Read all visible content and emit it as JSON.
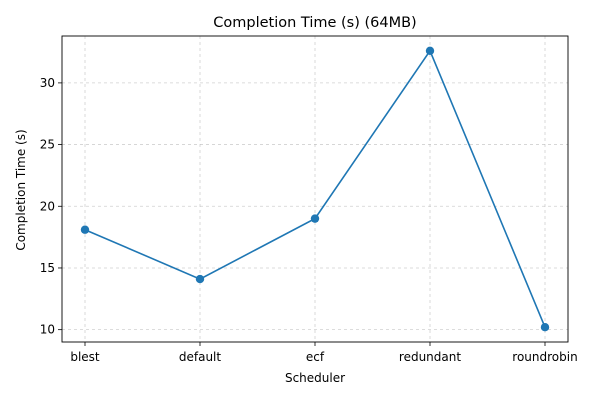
{
  "chart_data": {
    "type": "line",
    "title": "Completion Time (s) (64MB)",
    "xlabel": "Scheduler",
    "ylabel": "Completion Time (s)",
    "categories": [
      "blest",
      "default",
      "ecf",
      "redundant",
      "roundrobin"
    ],
    "series": [
      {
        "values": [
          18.1,
          14.1,
          19.0,
          32.6,
          10.2
        ],
        "color": "#1f77b4",
        "marker": "circle"
      }
    ],
    "yticks": [
      10,
      15,
      20,
      25,
      30
    ],
    "ylim": [
      9.0,
      33.8
    ],
    "grid": true,
    "legend": "none"
  }
}
